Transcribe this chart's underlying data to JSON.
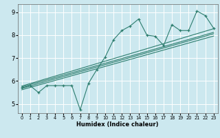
{
  "title": "",
  "xlabel": "Humidex (Indice chaleur)",
  "background_color": "#cce8ef",
  "grid_color": "#ffffff",
  "line_color": "#2d7d6e",
  "xlim": [
    -0.5,
    23.5
  ],
  "ylim": [
    4.6,
    9.35
  ],
  "xticks": [
    0,
    1,
    2,
    3,
    4,
    5,
    6,
    7,
    8,
    9,
    10,
    11,
    12,
    13,
    14,
    15,
    16,
    17,
    18,
    19,
    20,
    21,
    22,
    23
  ],
  "yticks": [
    5,
    6,
    7,
    8,
    9
  ],
  "scatter_x": [
    0,
    1,
    2,
    3,
    4,
    5,
    6,
    7,
    8,
    9,
    10,
    11,
    12,
    13,
    14,
    15,
    16,
    17,
    18,
    19,
    20,
    21,
    22,
    23
  ],
  "scatter_y": [
    5.7,
    5.8,
    5.5,
    5.8,
    5.8,
    5.8,
    5.8,
    4.75,
    5.9,
    6.5,
    7.05,
    7.8,
    8.2,
    8.4,
    8.7,
    8.0,
    7.95,
    7.55,
    8.45,
    8.2,
    8.2,
    9.05,
    8.85,
    8.3
  ],
  "reg_lines": [
    {
      "x": [
        0,
        23
      ],
      "y": [
        5.78,
        8.28
      ]
    },
    {
      "x": [
        0,
        23
      ],
      "y": [
        5.74,
        8.12
      ]
    },
    {
      "x": [
        0,
        23
      ],
      "y": [
        5.68,
        8.06
      ]
    },
    {
      "x": [
        0,
        23
      ],
      "y": [
        5.62,
        7.96
      ]
    }
  ],
  "xlabel_fontsize": 6.0,
  "tick_fontsize_x": 4.8,
  "tick_fontsize_y": 6.0
}
